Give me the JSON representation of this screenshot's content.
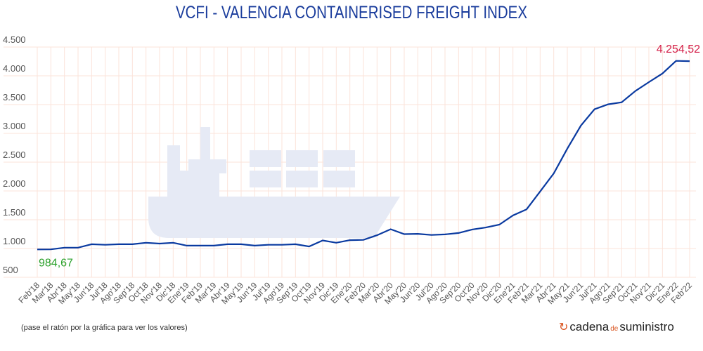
{
  "chart_data": {
    "type": "line",
    "title": "VCFI - VALENCIA CONTAINERISED FREIGHT INDEX",
    "xlabel": "",
    "ylabel": "",
    "ylim": [
      500,
      4500
    ],
    "yticks": [
      "500",
      "1.000",
      "1.500",
      "2.000",
      "2.500",
      "3.000",
      "3.500",
      "4.000",
      "4.500"
    ],
    "grid": true,
    "categories": [
      "Feb'18",
      "Mar'18",
      "Abr'18",
      "May'18",
      "Jun'18",
      "Jul'18",
      "Ago'18",
      "Sep'18",
      "Oct'18",
      "Nov'18",
      "Dic'18",
      "Ene'19",
      "Feb'19",
      "Mar'19",
      "Abr'19",
      "May'19",
      "Jun'19",
      "Jul'19",
      "Ago'19",
      "Sep'19",
      "Oct'19",
      "Nov'19",
      "Dic'19",
      "Ene'20",
      "Feb'20",
      "Mar'20",
      "Abr'20",
      "May'20",
      "Jun'20",
      "Jul'20",
      "Ago'20",
      "Sep'20",
      "Oct'20",
      "Nov'20",
      "Dic'20",
      "Ene'21",
      "Feb'21",
      "Mar'21",
      "Abr'21",
      "May'21",
      "Jun'21",
      "Jul'21",
      "Ago'21",
      "Sep'21",
      "Oct'21",
      "Nov'21",
      "Dic'21",
      "Ene'22",
      "Feb'22"
    ],
    "values": [
      984.67,
      985,
      1015,
      1015,
      1075,
      1065,
      1075,
      1075,
      1100,
      1085,
      1100,
      1050,
      1050,
      1050,
      1075,
      1075,
      1050,
      1065,
      1065,
      1075,
      1035,
      1140,
      1100,
      1145,
      1150,
      1230,
      1335,
      1250,
      1255,
      1235,
      1245,
      1270,
      1330,
      1365,
      1415,
      1575,
      1680,
      1990,
      2305,
      2735,
      3135,
      3420,
      3505,
      3540,
      3735,
      3890,
      4040,
      4260,
      4254.52
    ],
    "annotations": {
      "min_label": "984,67",
      "max_label": "4.254,52"
    },
    "line_color": "#0a3aa0",
    "min_color": "#2aa02a",
    "max_color": "#d4204a"
  },
  "footer": {
    "note": "(pase el ratón por la gráfica para ver los valores)",
    "logo_a": "cadena",
    "logo_de": "de",
    "logo_b": "suministro"
  }
}
